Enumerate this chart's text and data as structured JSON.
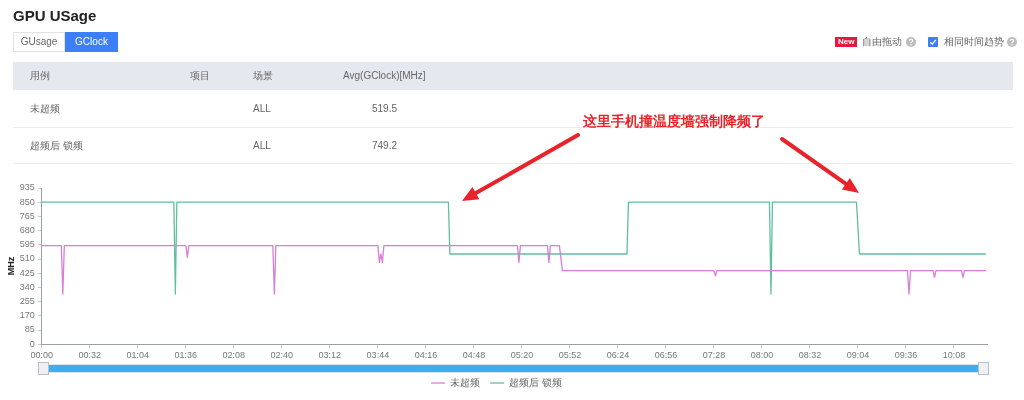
{
  "chart_data": {
    "type": "line",
    "title": "GPU USage",
    "ylabel": "MHz",
    "annotations": [
      "GUsage",
      "GClock",
      "New",
      "自由拖动",
      "相同时间趋势",
      "用例",
      "项目",
      "场景",
      "Avg(GClock)[MHz]",
      "未超频",
      "ALL",
      "519.5",
      "超频后 锁频",
      "ALL",
      "749.2",
      "这里手机撞温度墙强制降频了"
    ],
    "series": [
      {
        "name": "未超频",
        "color": "#d87ed6",
        "x": [
          0,
          13,
          14,
          15,
          96,
          97,
          98,
          154,
          155,
          156,
          224,
          225,
          226,
          227,
          228,
          317,
          318,
          319,
          337,
          338,
          339,
          345,
          347,
          448,
          449,
          450,
          577,
          578,
          579,
          594,
          595,
          596,
          613,
          614,
          615,
          629
        ],
        "values": [
          590,
          590,
          300,
          590,
          590,
          520,
          590,
          590,
          300,
          590,
          590,
          490,
          540,
          490,
          590,
          590,
          490,
          590,
          590,
          490,
          590,
          590,
          440,
          440,
          410,
          440,
          440,
          300,
          440,
          440,
          400,
          440,
          440,
          400,
          440,
          440
        ]
      },
      {
        "name": "超频后 锁频",
        "color": "#5fbf9f",
        "x": [
          0,
          88,
          89,
          90,
          271,
          272,
          390,
          391,
          485,
          486,
          487,
          543,
          545,
          629
        ],
        "values": [
          850,
          850,
          300,
          850,
          850,
          540,
          540,
          850,
          850,
          300,
          850,
          850,
          540,
          540
        ]
      }
    ],
    "xlim": [
      0,
      630
    ],
    "xticks": [
      {
        "value": 0,
        "label": "00:00"
      },
      {
        "value": 32,
        "label": "00:32"
      },
      {
        "value": 64,
        "label": "01:04"
      },
      {
        "value": 96,
        "label": "01:36"
      },
      {
        "value": 128,
        "label": "02:08"
      },
      {
        "value": 160,
        "label": "02:40"
      },
      {
        "value": 192,
        "label": "03:12"
      },
      {
        "value": 224,
        "label": "03:44"
      },
      {
        "value": 256,
        "label": "04:16"
      },
      {
        "value": 288,
        "label": "04:48"
      },
      {
        "value": 320,
        "label": "05:20"
      },
      {
        "value": 352,
        "label": "05:52"
      },
      {
        "value": 384,
        "label": "06:24"
      },
      {
        "value": 416,
        "label": "06:56"
      },
      {
        "value": 448,
        "label": "07:28"
      },
      {
        "value": 480,
        "label": "08:00"
      },
      {
        "value": 512,
        "label": "08:32"
      },
      {
        "value": 544,
        "label": "09:04"
      },
      {
        "value": 576,
        "label": "09:36"
      },
      {
        "value": 608,
        "label": "10:08"
      }
    ],
    "ylim": [
      0,
      935
    ],
    "yticks": [
      0,
      85,
      170,
      255,
      340,
      425,
      510,
      595,
      680,
      765,
      850,
      935
    ],
    "legend": "bottom",
    "marker": "none",
    "line_style": "solid"
  }
}
